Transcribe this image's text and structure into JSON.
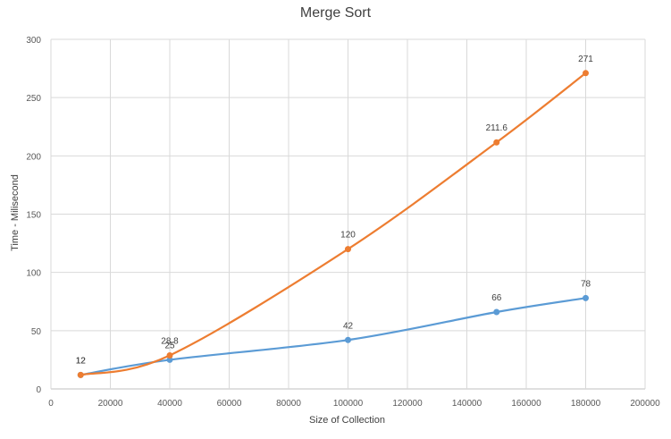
{
  "chart_data": {
    "type": "line",
    "title": "Merge Sort",
    "xlabel": "Size of Collection",
    "ylabel": "Time - Milisecond",
    "xlim": [
      0,
      200000
    ],
    "ylim": [
      0,
      300
    ],
    "xticks": [
      0,
      20000,
      40000,
      60000,
      80000,
      100000,
      120000,
      140000,
      160000,
      180000,
      200000
    ],
    "yticks": [
      0,
      50,
      100,
      150,
      200,
      250,
      300
    ],
    "grid": true,
    "smooth": true,
    "series": [
      {
        "color": "#5b9bd5",
        "points": [
          {
            "x": 10000,
            "y": 12
          },
          {
            "x": 40000,
            "y": 25
          },
          {
            "x": 100000,
            "y": 42
          },
          {
            "x": 150000,
            "y": 66
          },
          {
            "x": 180000,
            "y": 78
          }
        ]
      },
      {
        "color": "#ed7d31",
        "points": [
          {
            "x": 10000,
            "y": 12
          },
          {
            "x": 40000,
            "y": 28.8
          },
          {
            "x": 100000,
            "y": 120
          },
          {
            "x": 150000,
            "y": 211.6
          },
          {
            "x": 180000,
            "y": 271
          }
        ]
      }
    ]
  }
}
